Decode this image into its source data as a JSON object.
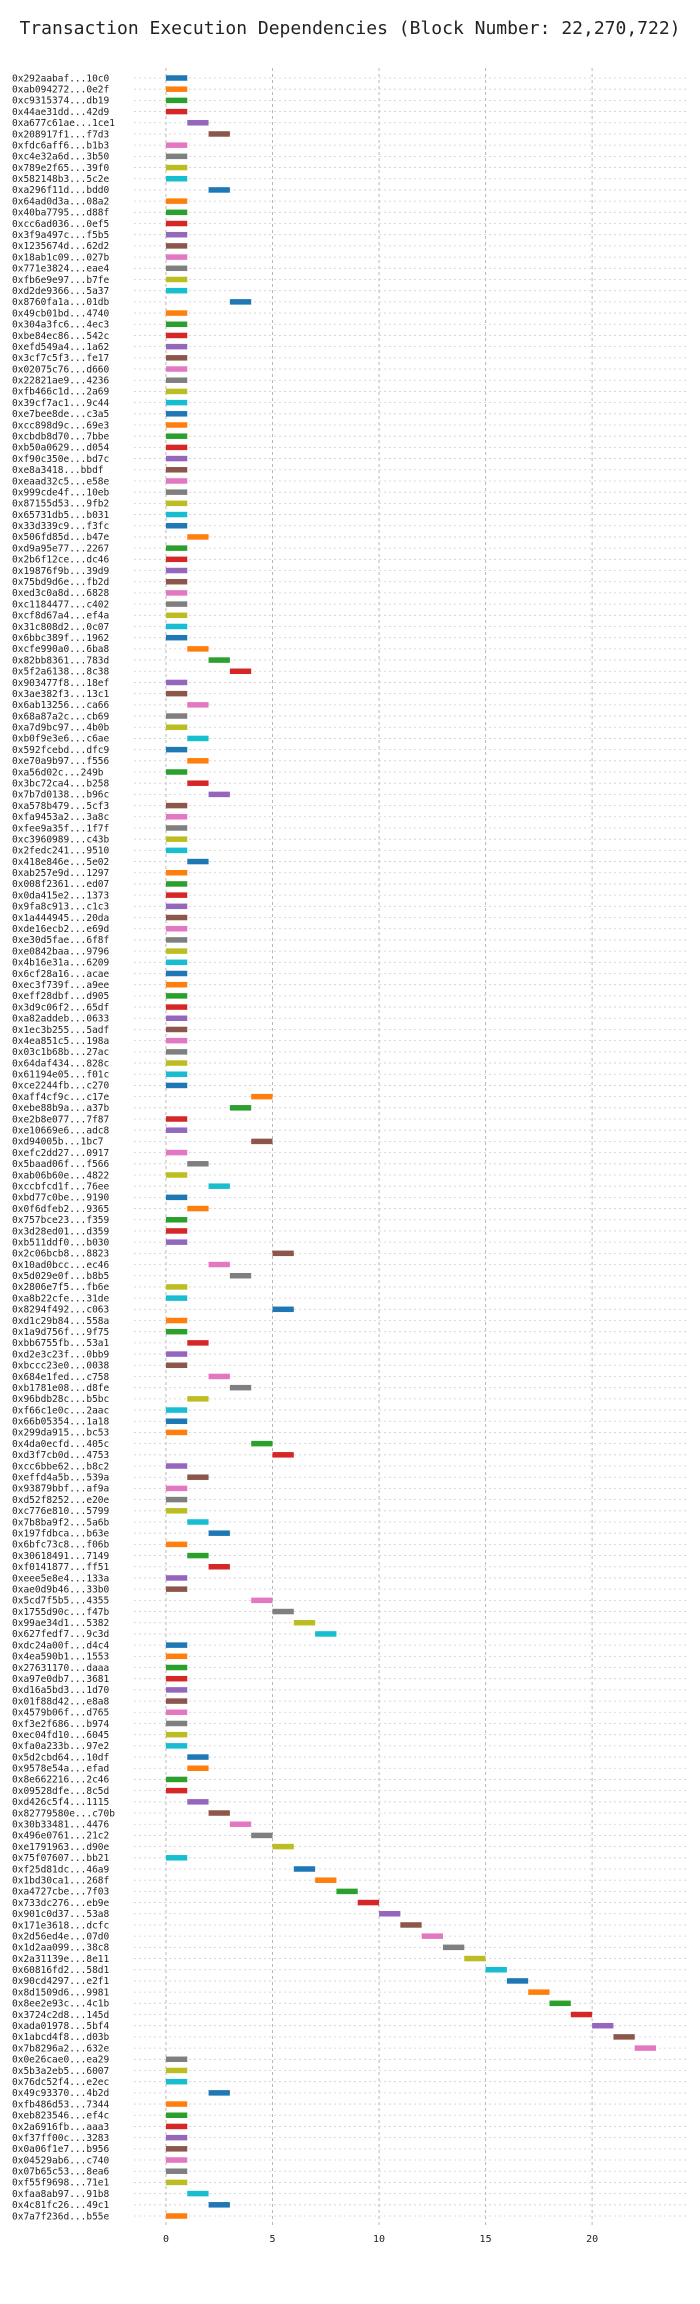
{
  "chart_data": {
    "type": "bar",
    "orientation": "horizontal",
    "title": "Transaction Execution Dependencies (Block Number: 22,270,722)",
    "xlabel": "",
    "ylabel": "",
    "xlim": [
      -1.5,
      24.5
    ],
    "xticks": [
      0,
      5,
      10,
      15,
      20
    ],
    "grid": true,
    "bar_width": 1,
    "palette": [
      "#1f77b4",
      "#ff7f0e",
      "#2ca02c",
      "#d62728",
      "#9467bd",
      "#8c564b",
      "#e377c2",
      "#7f7f7f",
      "#bcbd22",
      "#17becf"
    ],
    "transactions": [
      {
        "label": "0x292aabaf...10c0",
        "start": 0
      },
      {
        "label": "0xab094272...0e2f",
        "start": 0
      },
      {
        "label": "0xc9315374...db19",
        "start": 0
      },
      {
        "label": "0x44ae31dd...42d9",
        "start": 0
      },
      {
        "label": "0xa677c61ae...1ce1",
        "start": 1
      },
      {
        "label": "0x208917f1...f7d3",
        "start": 2
      },
      {
        "label": "0xfdc6aff6...b1b3",
        "start": 0
      },
      {
        "label": "0xc4e32a6d...3b50",
        "start": 0
      },
      {
        "label": "0x789e2f65...39f0",
        "start": 0
      },
      {
        "label": "0x582148b3...5c2e",
        "start": 0
      },
      {
        "label": "0xa296f11d...bdd0",
        "start": 2
      },
      {
        "label": "0x64ad0d3a...08a2",
        "start": 0
      },
      {
        "label": "0x40ba7795...d88f",
        "start": 0
      },
      {
        "label": "0xcc6ad036...0ef5",
        "start": 0
      },
      {
        "label": "0x3f9a497c...f5b5",
        "start": 0
      },
      {
        "label": "0x1235674d...62d2",
        "start": 0
      },
      {
        "label": "0x18ab1c09...027b",
        "start": 0
      },
      {
        "label": "0x771e3824...eae4",
        "start": 0
      },
      {
        "label": "0xfb6e9e97...b7fe",
        "start": 0
      },
      {
        "label": "0xd2de9366...5a37",
        "start": 0
      },
      {
        "label": "0x8760fa1a...01db",
        "start": 3
      },
      {
        "label": "0x49cb01bd...4740",
        "start": 0
      },
      {
        "label": "0x304a3fc6...4ec3",
        "start": 0
      },
      {
        "label": "0xbe84ec86...542c",
        "start": 0
      },
      {
        "label": "0xefd549a4...1a62",
        "start": 0
      },
      {
        "label": "0x3cf7c5f3...fe17",
        "start": 0
      },
      {
        "label": "0x02075c76...d660",
        "start": 0
      },
      {
        "label": "0x22821ae9...4236",
        "start": 0
      },
      {
        "label": "0xfb466c1d...2a69",
        "start": 0
      },
      {
        "label": "0x39cf7ac1...9c44",
        "start": 0
      },
      {
        "label": "0xe7bee8de...c3a5",
        "start": 0
      },
      {
        "label": "0xcc898d9c...69e3",
        "start": 0
      },
      {
        "label": "0xcbdb8d70...7bbe",
        "start": 0
      },
      {
        "label": "0xb50a0629...d054",
        "start": 0
      },
      {
        "label": "0xf90c350e...bd7c",
        "start": 0
      },
      {
        "label": "0xe8a3418...bbdf",
        "start": 0
      },
      {
        "label": "0xeaad32c5...e58e",
        "start": 0
      },
      {
        "label": "0x999cde4f...10eb",
        "start": 0
      },
      {
        "label": "0x87155d53...9fb2",
        "start": 0
      },
      {
        "label": "0x65731db5...b031",
        "start": 0
      },
      {
        "label": "0x33d339c9...f3fc",
        "start": 0
      },
      {
        "label": "0x506fd85d...b47e",
        "start": 1
      },
      {
        "label": "0xd9a95e77...2267",
        "start": 0
      },
      {
        "label": "0x2b6f12ce...dc46",
        "start": 0
      },
      {
        "label": "0x19876f9b...39d9",
        "start": 0
      },
      {
        "label": "0x75bd9d6e...fb2d",
        "start": 0
      },
      {
        "label": "0xed3c0a8d...6828",
        "start": 0
      },
      {
        "label": "0xc1184477...c402",
        "start": 0
      },
      {
        "label": "0xcf8d67a4...ef4a",
        "start": 0
      },
      {
        "label": "0x31c808d2...0c07",
        "start": 0
      },
      {
        "label": "0x6bbc389f...1962",
        "start": 0
      },
      {
        "label": "0xcfe990a0...6ba8",
        "start": 1
      },
      {
        "label": "0x82bb8361...783d",
        "start": 2
      },
      {
        "label": "0x5f2a6138...8c38",
        "start": 3
      },
      {
        "label": "0x903477f8...18ef",
        "start": 0
      },
      {
        "label": "0x3ae382f3...13c1",
        "start": 0
      },
      {
        "label": "0x6ab13256...ca66",
        "start": 1
      },
      {
        "label": "0x68a87a2c...cb69",
        "start": 0
      },
      {
        "label": "0xa7d9bc97...4b0b",
        "start": 0
      },
      {
        "label": "0xb0f9e3e6...c6ae",
        "start": 1
      },
      {
        "label": "0x592fcebd...dfc9",
        "start": 0
      },
      {
        "label": "0xe70a9b97...f556",
        "start": 1
      },
      {
        "label": "0xa56d02c...249b",
        "start": 0
      },
      {
        "label": "0x3bc72ca4...b258",
        "start": 1
      },
      {
        "label": "0x7b7d0138...b96c",
        "start": 2
      },
      {
        "label": "0xa578b479...5cf3",
        "start": 0
      },
      {
        "label": "0xfa9453a2...3a8c",
        "start": 0
      },
      {
        "label": "0xfee9a35f...1f7f",
        "start": 0
      },
      {
        "label": "0xc3960989...c43b",
        "start": 0
      },
      {
        "label": "0x2fedc241...9510",
        "start": 0
      },
      {
        "label": "0x418e846e...5e02",
        "start": 1
      },
      {
        "label": "0xab257e9d...1297",
        "start": 0
      },
      {
        "label": "0x008f2361...ed07",
        "start": 0
      },
      {
        "label": "0x0da415e2...1373",
        "start": 0
      },
      {
        "label": "0x9fa8c913...c1c3",
        "start": 0
      },
      {
        "label": "0x1a444945...20da",
        "start": 0
      },
      {
        "label": "0xde16ecb2...e69d",
        "start": 0
      },
      {
        "label": "0xe30d5fae...6f8f",
        "start": 0
      },
      {
        "label": "0xe0842baa...9796",
        "start": 0
      },
      {
        "label": "0x4b16e31a...6209",
        "start": 0
      },
      {
        "label": "0x6cf28a16...acae",
        "start": 0
      },
      {
        "label": "0xec3f739f...a9ee",
        "start": 0
      },
      {
        "label": "0xeff28dbf...d905",
        "start": 0
      },
      {
        "label": "0x3d9c06f2...65df",
        "start": 0
      },
      {
        "label": "0xa82addeb...0633",
        "start": 0
      },
      {
        "label": "0x1ec3b255...5adf",
        "start": 0
      },
      {
        "label": "0x4ea851c5...198a",
        "start": 0
      },
      {
        "label": "0x03c1b68b...27ac",
        "start": 0
      },
      {
        "label": "0x64daf434...828c",
        "start": 0
      },
      {
        "label": "0x61194e05...f01c",
        "start": 0
      },
      {
        "label": "0xce2244fb...c270",
        "start": 0
      },
      {
        "label": "0xaff4cf9c...c17e",
        "start": 4
      },
      {
        "label": "0xebe88b9a...a37b",
        "start": 3
      },
      {
        "label": "0xe2b8e077...7f87",
        "start": 0
      },
      {
        "label": "0xe10669e6...adc8",
        "start": 0
      },
      {
        "label": "0xd94005b...1bc7",
        "start": 4
      },
      {
        "label": "0xefc2dd27...0917",
        "start": 0
      },
      {
        "label": "0x5baad06f...f566",
        "start": 1
      },
      {
        "label": "0xab06b60e...4822",
        "start": 0
      },
      {
        "label": "0xccbfcd1f...76ee",
        "start": 2
      },
      {
        "label": "0xbd77c0be...9190",
        "start": 0
      },
      {
        "label": "0x0f6dfeb2...9365",
        "start": 1
      },
      {
        "label": "0x757bce23...f359",
        "start": 0
      },
      {
        "label": "0x3d28ed01...d359",
        "start": 0
      },
      {
        "label": "0xb511ddf0...b030",
        "start": 0
      },
      {
        "label": "0x2c06bcb8...8823",
        "start": 5
      },
      {
        "label": "0x10ad0bcc...ec46",
        "start": 2
      },
      {
        "label": "0x5d029e0f...b8b5",
        "start": 3
      },
      {
        "label": "0x2806e7f5...fb6e",
        "start": 0
      },
      {
        "label": "0xa8b22cfe...31de",
        "start": 0
      },
      {
        "label": "0x8294f492...c063",
        "start": 5
      },
      {
        "label": "0xd1c29b84...558a",
        "start": 0
      },
      {
        "label": "0x1a9d756f...9f75",
        "start": 0
      },
      {
        "label": "0xbb6755fb...53a1",
        "start": 1
      },
      {
        "label": "0xd2e3c23f...0bb9",
        "start": 0
      },
      {
        "label": "0xbccc23e0...0038",
        "start": 0
      },
      {
        "label": "0x684e1fed...c758",
        "start": 2
      },
      {
        "label": "0xb1781e08...d8fe",
        "start": 3
      },
      {
        "label": "0x96bdb28c...b5bc",
        "start": 1
      },
      {
        "label": "0xf66c1e0c...2aac",
        "start": 0
      },
      {
        "label": "0x66b05354...1a18",
        "start": 0
      },
      {
        "label": "0x299da915...bc53",
        "start": 0
      },
      {
        "label": "0x4da0ecfd...405c",
        "start": 4
      },
      {
        "label": "0xd3f7cb0d...4753",
        "start": 5
      },
      {
        "label": "0xcc6bbe62...b8c2",
        "start": 0
      },
      {
        "label": "0xeffd4a5b...539a",
        "start": 1
      },
      {
        "label": "0x93879bbf...af9a",
        "start": 0
      },
      {
        "label": "0xd52f8252...e20e",
        "start": 0
      },
      {
        "label": "0xc776e810...5799",
        "start": 0
      },
      {
        "label": "0x7b8ba9f2...5a6b",
        "start": 1
      },
      {
        "label": "0x197fdbca...b63e",
        "start": 2
      },
      {
        "label": "0x6bfc73c8...f06b",
        "start": 0
      },
      {
        "label": "0x30618491...7149",
        "start": 1
      },
      {
        "label": "0xf0141877...ff51",
        "start": 2
      },
      {
        "label": "0xeee5e8e4...133a",
        "start": 0
      },
      {
        "label": "0xae0d9b46...33b0",
        "start": 0
      },
      {
        "label": "0x5cd7f5b5...4355",
        "start": 4
      },
      {
        "label": "0x1755d90c...f47b",
        "start": 5
      },
      {
        "label": "0x99ae34d1...5382",
        "start": 6
      },
      {
        "label": "0x627fedf7...9c3d",
        "start": 7
      },
      {
        "label": "0xdc24a00f...d4c4",
        "start": 0
      },
      {
        "label": "0x4ea590b1...1553",
        "start": 0
      },
      {
        "label": "0x27631170...daaa",
        "start": 0
      },
      {
        "label": "0xa97e0db7...3681",
        "start": 0
      },
      {
        "label": "0xd16a5bd3...1d70",
        "start": 0
      },
      {
        "label": "0x01f88d42...e8a8",
        "start": 0
      },
      {
        "label": "0x4579b06f...d765",
        "start": 0
      },
      {
        "label": "0xf3e2f686...b974",
        "start": 0
      },
      {
        "label": "0xec04fd10...6045",
        "start": 0
      },
      {
        "label": "0xfa0a233b...97e2",
        "start": 0
      },
      {
        "label": "0x5d2cbd64...10df",
        "start": 1
      },
      {
        "label": "0x9578e54a...efad",
        "start": 1
      },
      {
        "label": "0x8e662216...2c46",
        "start": 0
      },
      {
        "label": "0x09528dfe...8c5d",
        "start": 0
      },
      {
        "label": "0xd426c5f4...1115",
        "start": 1
      },
      {
        "label": "0x82779580e...c70b",
        "start": 2
      },
      {
        "label": "0x30b33481...4476",
        "start": 3
      },
      {
        "label": "0x496e0761...21c2",
        "start": 4
      },
      {
        "label": "0xe1791963...d90e",
        "start": 5
      },
      {
        "label": "0x75f07607...bb21",
        "start": 0
      },
      {
        "label": "0xf25d81dc...46a9",
        "start": 6
      },
      {
        "label": "0x1bd30ca1...268f",
        "start": 7
      },
      {
        "label": "0xa4727cbe...7f03",
        "start": 8
      },
      {
        "label": "0x733dc276...eb9e",
        "start": 9
      },
      {
        "label": "0x901c0d37...53a8",
        "start": 10
      },
      {
        "label": "0x171e3618...dcfc",
        "start": 11
      },
      {
        "label": "0x2d56ed4e...07d0",
        "start": 12
      },
      {
        "label": "0x1d2aa099...38c8",
        "start": 13
      },
      {
        "label": "0x2a31139e...8e11",
        "start": 14
      },
      {
        "label": "0x60816fd2...58d1",
        "start": 15
      },
      {
        "label": "0x90cd4297...e2f1",
        "start": 16
      },
      {
        "label": "0x8d1509d6...9981",
        "start": 17
      },
      {
        "label": "0x8ee2e93c...4c1b",
        "start": 18
      },
      {
        "label": "0x3724c2d8...145d",
        "start": 19
      },
      {
        "label": "0xada01978...5bf4",
        "start": 20
      },
      {
        "label": "0x1abcd4f8...d03b",
        "start": 21
      },
      {
        "label": "0x7b8296a2...632e",
        "start": 22
      },
      {
        "label": "0x0e26cae0...ea29",
        "start": 0
      },
      {
        "label": "0x5b3a2eb5...6007",
        "start": 0
      },
      {
        "label": "0x76dc52f4...e2ec",
        "start": 0
      },
      {
        "label": "0x49c93370...4b2d",
        "start": 2
      },
      {
        "label": "0xfb486d53...7344",
        "start": 0
      },
      {
        "label": "0xeb823546...ef4c",
        "start": 0
      },
      {
        "label": "0x2a6916fb...aaa3",
        "start": 0
      },
      {
        "label": "0xf37ff00c...3283",
        "start": 0
      },
      {
        "label": "0x0a06f1e7...b956",
        "start": 0
      },
      {
        "label": "0x04529ab6...c740",
        "start": 0
      },
      {
        "label": "0x07b65c53...8ea6",
        "start": 0
      },
      {
        "label": "0xf55f9698...71e1",
        "start": 0
      },
      {
        "label": "0xfaa8ab97...91b8",
        "start": 1
      },
      {
        "label": "0x4c81fc26...49c1",
        "start": 2
      },
      {
        "label": "0x7a7f236d...b55e",
        "start": 0
      }
    ]
  }
}
